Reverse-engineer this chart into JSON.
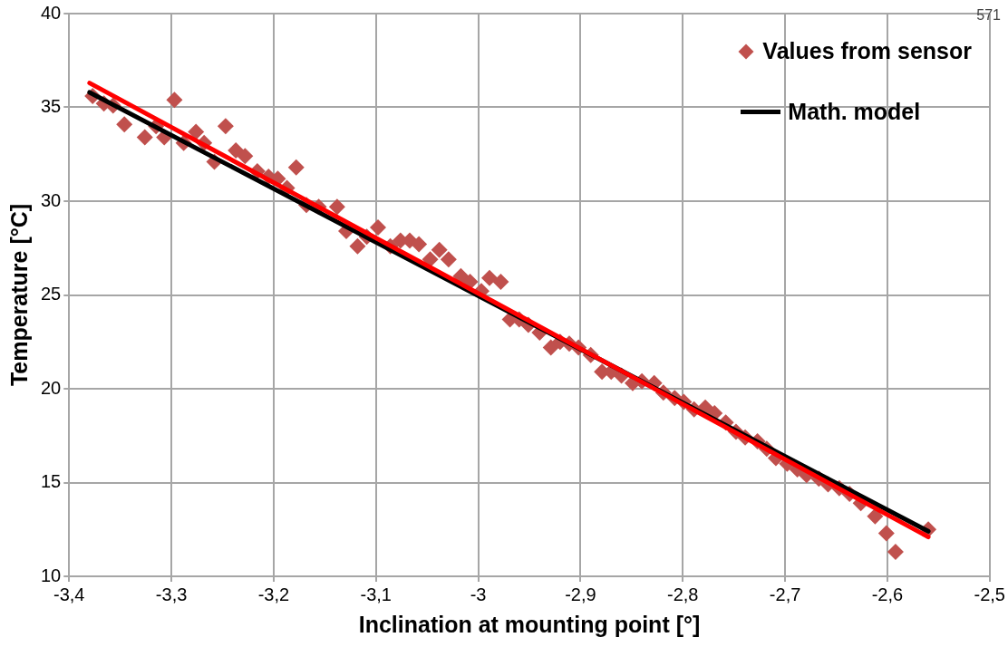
{
  "chart_data": {
    "type": "scatter",
    "xlabel": "Inclination at mounting point [°]",
    "ylabel": "Temperature [°C]",
    "xlim": [
      -3.4,
      -2.5
    ],
    "xticks": [
      {
        "value": -3.4,
        "label": "-3,4"
      },
      {
        "value": -3.3,
        "label": "-3,3"
      },
      {
        "value": -3.2,
        "label": "-3,2"
      },
      {
        "value": -3.1,
        "label": "-3,1"
      },
      {
        "value": -3,
        "label": "-3"
      },
      {
        "value": -2.9,
        "label": "-2,9"
      },
      {
        "value": -2.8,
        "label": "-2,8"
      },
      {
        "value": -2.7,
        "label": "-2,7"
      },
      {
        "value": -2.6,
        "label": "-2,6"
      },
      {
        "value": -2.5,
        "label": "-2,5"
      }
    ],
    "ylim": [
      10,
      40
    ],
    "yticks": [
      10,
      15,
      20,
      25,
      30,
      35,
      40
    ],
    "grid": true,
    "legend": "top right",
    "annotations": [
      "571"
    ],
    "series": [
      {
        "name": "Values from sensor",
        "marker": "diamond",
        "color": "#c0504d",
        "x": [
          -3.377,
          -3.366,
          -3.357,
          -3.346,
          -3.326,
          -3.315,
          -3.307,
          -3.297,
          -3.288,
          -3.276,
          -3.268,
          -3.258,
          -3.247,
          -3.237,
          -3.228,
          -3.216,
          -3.205,
          -3.196,
          -3.187,
          -3.178,
          -3.168,
          -3.156,
          -3.138,
          -3.129,
          -3.118,
          -3.109,
          -3.098,
          -3.086,
          -3.076,
          -3.067,
          -3.058,
          -3.047,
          -3.038,
          -3.029,
          -3.017,
          -3.008,
          -2.997,
          -2.989,
          -2.978,
          -2.969,
          -2.96,
          -2.951,
          -2.94,
          -2.929,
          -2.92,
          -2.911,
          -2.902,
          -2.89,
          -2.879,
          -2.87,
          -2.86,
          -2.849,
          -2.84,
          -2.828,
          -2.819,
          -2.808,
          -2.799,
          -2.789,
          -2.778,
          -2.769,
          -2.758,
          -2.748,
          -2.739,
          -2.727,
          -2.718,
          -2.709,
          -2.698,
          -2.688,
          -2.679,
          -2.667,
          -2.658,
          -2.647,
          -2.637,
          -2.626,
          -2.612,
          -2.601,
          -2.592,
          -2.56
        ],
        "values": [
          35.6,
          35.2,
          35.1,
          34.1,
          33.4,
          34.0,
          33.4,
          35.4,
          33.1,
          33.7,
          33.1,
          32.1,
          34.0,
          32.7,
          32.4,
          31.6,
          31.3,
          31.2,
          30.7,
          31.8,
          29.8,
          29.7,
          29.7,
          28.4,
          27.6,
          28.1,
          28.6,
          27.6,
          27.9,
          27.9,
          27.7,
          26.9,
          27.4,
          26.9,
          26.0,
          25.7,
          25.2,
          25.9,
          25.7,
          23.7,
          23.7,
          23.4,
          23.0,
          22.2,
          22.5,
          22.4,
          22.2,
          21.8,
          20.9,
          20.9,
          20.7,
          20.3,
          20.4,
          20.3,
          19.8,
          19.5,
          19.3,
          18.9,
          19.0,
          18.7,
          18.2,
          17.7,
          17.4,
          17.2,
          16.8,
          16.3,
          16.0,
          15.7,
          15.4,
          15.2,
          14.9,
          14.7,
          14.4,
          13.9,
          13.2,
          12.3,
          11.3,
          12.5
        ]
      },
      {
        "type": "line",
        "marker": "none",
        "color": "#ff0000",
        "x": [
          -3.38,
          -2.56
        ],
        "values": [
          36.3,
          12.1
        ]
      },
      {
        "name": "Math. model",
        "type": "line",
        "marker": "none",
        "color": "#000000",
        "x": [
          -3.38,
          -2.56
        ],
        "values": [
          35.8,
          12.4
        ]
      }
    ]
  }
}
